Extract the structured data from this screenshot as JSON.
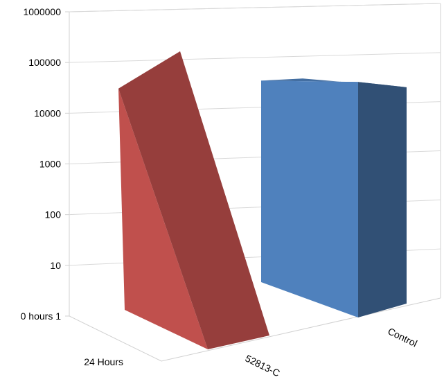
{
  "chart_data": {
    "type": "area",
    "title": "",
    "xlabel": "",
    "ylabel": "",
    "scale": "log",
    "ylim": [
      1,
      1000000
    ],
    "y_ticks": [
      "0 hours 1",
      "10",
      "100",
      "1000",
      "10000",
      "100000",
      "1000000"
    ],
    "categories": [
      "0 hours",
      "24 Hours"
    ],
    "series": [
      {
        "name": "52813-C",
        "values": [
          150000,
          1
        ],
        "color": "#c0504d"
      },
      {
        "name": "Control",
        "values": [
          150000,
          150000
        ],
        "color": "#4f81bd"
      }
    ],
    "grid": true,
    "legend": "none",
    "view": "3d"
  }
}
